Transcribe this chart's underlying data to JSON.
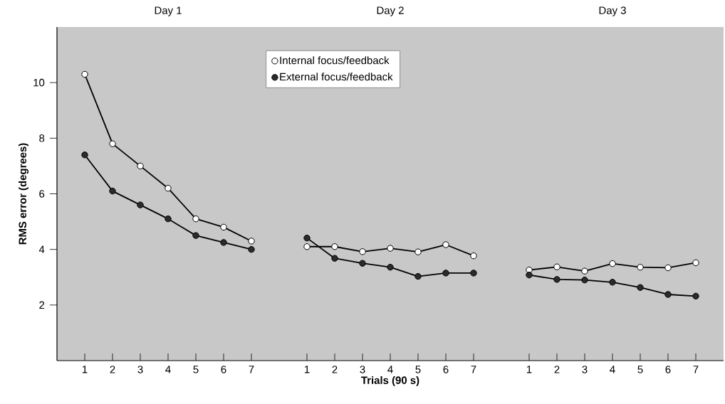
{
  "chart_data": [
    {
      "type": "line",
      "title": "Day 1",
      "ylabel": "RMS error (degrees)",
      "x": [
        1,
        2,
        3,
        4,
        5,
        6,
        7
      ],
      "xlim": [
        0,
        8
      ],
      "xticks": [
        1,
        2,
        3,
        4,
        5,
        6,
        7
      ],
      "ylim": [
        0,
        12
      ],
      "yticks": [
        2,
        4,
        6,
        8,
        10
      ],
      "marker": "circle",
      "line_style": "solid",
      "series": [
        {
          "color": "#ffffff",
          "values": [
            10.3,
            7.8,
            7.0,
            6.2,
            5.1,
            4.8,
            4.3
          ]
        },
        {
          "color": "#2b2b2b",
          "values": [
            7.4,
            6.1,
            5.6,
            5.1,
            4.5,
            4.25,
            4.0
          ]
        }
      ]
    },
    {
      "type": "line",
      "title": "Day 2",
      "xlabel": "Trials (90 s)",
      "x": [
        1,
        2,
        3,
        4,
        5,
        6,
        7
      ],
      "xlim": [
        0,
        8
      ],
      "xticks": [
        1,
        2,
        3,
        4,
        5,
        6,
        7
      ],
      "ylim": [
        0,
        12
      ],
      "tick_labels": "x",
      "marker": "circle",
      "line_style": "solid",
      "legend": "top left",
      "series": [
        {
          "name": "Internal focus/feedback",
          "color": "#ffffff",
          "values": [
            4.1,
            4.1,
            3.92,
            4.04,
            3.91,
            4.17,
            3.77
          ]
        },
        {
          "name": "External focus/feedback",
          "color": "#2b2b2b",
          "values": [
            4.41,
            3.68,
            3.5,
            3.36,
            3.03,
            3.15,
            3.15
          ]
        }
      ]
    },
    {
      "type": "line",
      "title": "Day 3",
      "x": [
        1,
        2,
        3,
        4,
        5,
        6,
        7
      ],
      "xlim": [
        0,
        8
      ],
      "xticks": [
        1,
        2,
        3,
        4,
        5,
        6,
        7
      ],
      "ylim": [
        0,
        12
      ],
      "tick_labels": "x",
      "marker": "circle",
      "line_style": "solid",
      "series": [
        {
          "color": "#ffffff",
          "values": [
            3.26,
            3.37,
            3.22,
            3.49,
            3.36,
            3.34,
            3.52
          ]
        },
        {
          "color": "#2b2b2b",
          "values": [
            3.08,
            2.92,
            2.9,
            2.82,
            2.63,
            2.38,
            2.32
          ]
        }
      ]
    }
  ]
}
